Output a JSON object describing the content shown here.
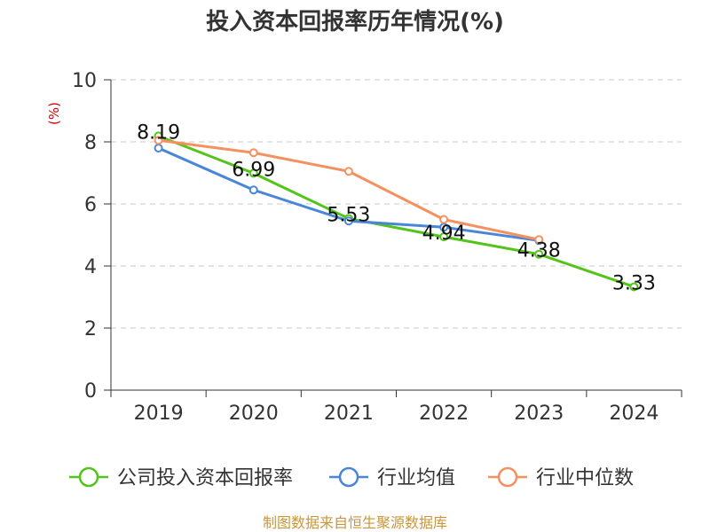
{
  "chart_data": {
    "type": "line",
    "title": "投入资本回报率历年情况(%)",
    "ylabel": "(%)",
    "xlabel": "",
    "categories": [
      "2019",
      "2020",
      "2021",
      "2022",
      "2023",
      "2024"
    ],
    "ylim": [
      0,
      10
    ],
    "yticks": [
      0,
      2,
      4,
      6,
      8,
      10
    ],
    "grid": true,
    "legend_position": "bottom",
    "series": [
      {
        "name": "公司投入资本回报率",
        "color": "#52c41a",
        "values": [
          8.19,
          6.99,
          5.53,
          4.94,
          4.38,
          3.33
        ],
        "labels": [
          "8.19",
          "6.99",
          "5.53",
          "4.94",
          "4.38",
          "3.33"
        ]
      },
      {
        "name": "行业均值",
        "color": "#4a86d8",
        "values": [
          7.8,
          6.45,
          5.45,
          5.25,
          4.82,
          null
        ]
      },
      {
        "name": "行业中位数",
        "color": "#f59160",
        "values": [
          8.05,
          7.65,
          7.05,
          5.5,
          4.85,
          null
        ]
      }
    ],
    "source": "制图数据来自恒生聚源数据库"
  }
}
